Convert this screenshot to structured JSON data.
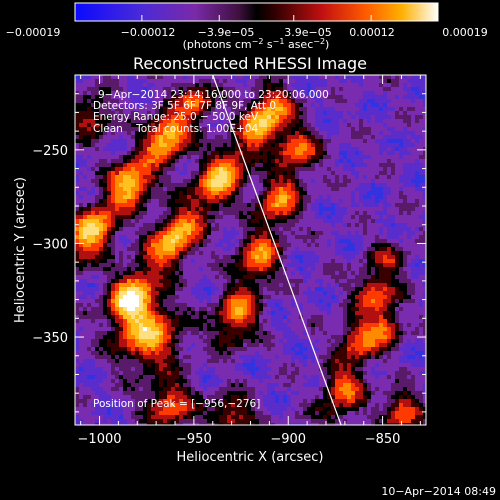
{
  "colors": {
    "background": "#000000",
    "foreground": "#ffffff",
    "limb_line": "#ffffff",
    "colormap": [
      "#1010ff",
      "#5a2ad0",
      "#8a2a9a",
      "#000000",
      "#2a0000",
      "#c01010",
      "#ff5000",
      "#ff9a00",
      "#ffe060",
      "#ffffff"
    ]
  },
  "chart_data": {
    "type": "heatmap",
    "title": "Reconstructed RHESSI Image",
    "xlabel": "Heliocentric X (arcsec)",
    "ylabel": "Heliocentric Y (arcsec)",
    "xlim": [
      -1013,
      -827
    ],
    "ylim": [
      -397,
      -210
    ],
    "x_ticks": [
      -1000,
      -950,
      -900,
      -850
    ],
    "y_ticks": [
      -250,
      -300,
      -350
    ],
    "x_tick_labels": [
      "−1000",
      "−950",
      "−900",
      "−850"
    ],
    "y_tick_labels": [
      "−250",
      "−300",
      "−350"
    ],
    "colorbar": {
      "range": [
        -0.00019,
        0.00019
      ],
      "ticks": [
        -0.00019,
        -0.00012,
        -3.9e-05,
        3.9e-05,
        0.00012,
        0.00019
      ],
      "tick_labels": [
        "−0.00019",
        "−0.00012",
        "−3.9e−05",
        "3.9e−05",
        "0.00012",
        "0.00019"
      ],
      "units_prefix": "(photons cm",
      "units_exp1": "−2",
      "units_mid": " s",
      "units_exp2": "−1",
      "units_mid2": " asec",
      "units_exp3": "−2",
      "units_suffix": ")"
    },
    "annotations": {
      "time_range": "9−Apr−2014 23:14:16.000 to 23:20:06.000",
      "detectors": "Detectors: 3F 5F 6F 7F 8F 9F, Att 0",
      "energy": "Energy Range: 25.0 − 50.0 keV",
      "clean": "Clean    Total counts: 1.00E+04",
      "peak": "Position of Peak = [−956,−276]"
    },
    "peak": {
      "x": -956,
      "y": -276
    },
    "limb_line": {
      "x1": -940,
      "y1": -210,
      "x2": -872,
      "y2": -397
    },
    "bright_ridges": [
      {
        "x1": -1013,
        "y1": -305,
        "x2": -950,
        "y2": -225,
        "amp": 1.0
      },
      {
        "x1": -985,
        "y1": -330,
        "x2": -908,
        "y2": -228,
        "amp": 0.95
      },
      {
        "x1": -930,
        "y1": -345,
        "x2": -895,
        "y2": -250,
        "amp": 0.75
      },
      {
        "x1": -875,
        "y1": -390,
        "x2": -848,
        "y2": -310,
        "amp": 0.7
      }
    ],
    "blobs": [
      {
        "x": -975,
        "y": -348,
        "r": 12,
        "amp": 0.95
      },
      {
        "x": -963,
        "y": -386,
        "r": 9,
        "amp": 0.7
      },
      {
        "x": -930,
        "y": -392,
        "r": 8,
        "amp": 0.6
      },
      {
        "x": -848,
        "y": -345,
        "r": 6,
        "amp": 0.6
      },
      {
        "x": -840,
        "y": -390,
        "r": 7,
        "amp": 0.75
      },
      {
        "x": -1005,
        "y": -232,
        "r": 8,
        "amp": 0.55
      }
    ]
  },
  "footer": {
    "timestamp": "10−Apr−2014 08:49"
  }
}
